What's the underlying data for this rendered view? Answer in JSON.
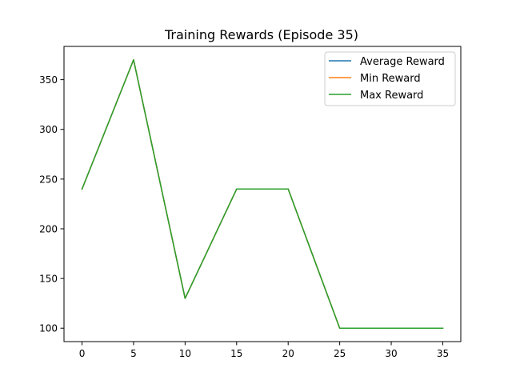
{
  "chart_data": {
    "type": "line",
    "title": "Training Rewards (Episode 35)",
    "xlabel": "",
    "ylabel": "",
    "x": [
      0,
      5,
      10,
      15,
      20,
      25,
      30,
      35
    ],
    "series": [
      {
        "name": "Average Reward",
        "color": "#1f77b4",
        "values": [
          240,
          370,
          130,
          240,
          240,
          100,
          100,
          100
        ]
      },
      {
        "name": "Min Reward",
        "color": "#ff7f0e",
        "values": [
          240,
          370,
          130,
          240,
          240,
          100,
          100,
          100
        ]
      },
      {
        "name": "Max Reward",
        "color": "#2ca02c",
        "values": [
          240,
          370,
          130,
          240,
          240,
          100,
          100,
          100
        ]
      }
    ],
    "xlim": [
      -1.75,
      36.75
    ],
    "ylim": [
      86.5,
      383.5
    ],
    "xticks": [
      0,
      5,
      10,
      15,
      20,
      25,
      30,
      35
    ],
    "yticks": [
      100,
      150,
      200,
      250,
      300,
      350
    ],
    "grid": false,
    "legend_position": "top-right"
  }
}
